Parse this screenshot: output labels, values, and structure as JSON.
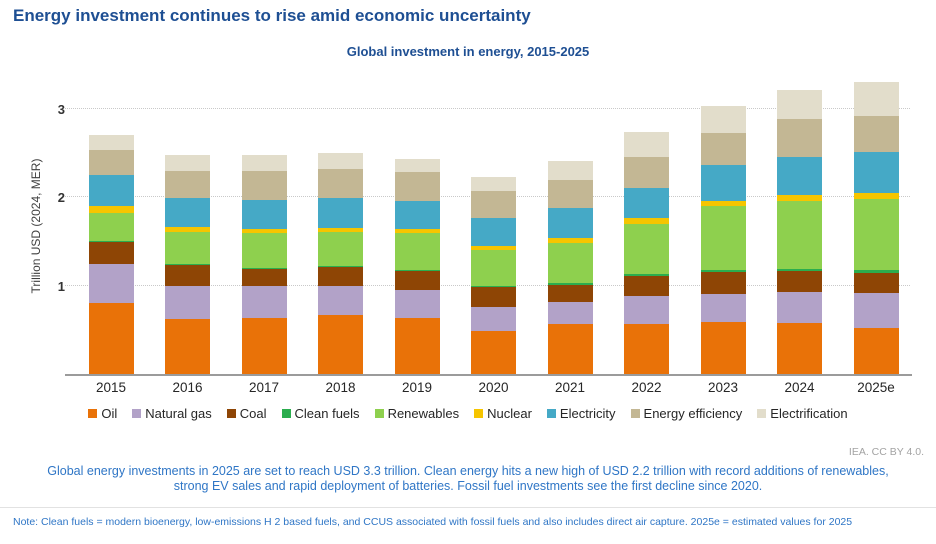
{
  "page": {
    "title": "Energy investment continues to rise amid economic uncertainty",
    "credit": "IEA. CC BY 4.0.",
    "caption": "Global energy investments in 2025 are set to reach USD 3.3 trillion. Clean energy hits a new high of USD 2.2 trillion with record additions of renewables, strong EV sales and rapid deployment of batteries. Fossil fuel investments see the first decline since 2020.",
    "note": "Note: Clean fuels = modern bioenergy, low-emissions H 2 based fuels, and CCUS associated with fossil fuels and also includes direct air capture. 2025e = estimated values for 2025"
  },
  "colors": {
    "title_blue": "#1e4f93",
    "caption_blue": "#2f76c6",
    "credit_gray": "#a3a3a3",
    "axis_gray": "#9b9b9b",
    "gridline_gray": "#c9c9c9"
  },
  "chart_data": {
    "type": "bar",
    "stacked": true,
    "title": "Global investment in energy, 2015-2025",
    "xlabel": "",
    "ylabel": "Trillion USD (2024, MER)",
    "ylim": [
      0,
      3.45
    ],
    "yticks": [
      1,
      2,
      3
    ],
    "grid": "horizontal-dotted",
    "legend_position": "bottom",
    "units": "trillion USD",
    "categories": [
      "2015",
      "2016",
      "2017",
      "2018",
      "2019",
      "2020",
      "2021",
      "2022",
      "2023",
      "2024",
      "2025e"
    ],
    "series": [
      {
        "name": "Oil",
        "color": "#e97208",
        "values": [
          0.8,
          0.62,
          0.63,
          0.67,
          0.63,
          0.49,
          0.56,
          0.57,
          0.59,
          0.58,
          0.52
        ]
      },
      {
        "name": "Natural gas",
        "color": "#b2a2c8",
        "values": [
          0.44,
          0.38,
          0.37,
          0.33,
          0.32,
          0.27,
          0.25,
          0.31,
          0.31,
          0.35,
          0.4
        ]
      },
      {
        "name": "Coal",
        "color": "#8e4505",
        "values": [
          0.25,
          0.23,
          0.19,
          0.21,
          0.21,
          0.22,
          0.2,
          0.23,
          0.25,
          0.23,
          0.22
        ]
      },
      {
        "name": "Clean fuels",
        "color": "#2bad4e",
        "values": [
          0.01,
          0.01,
          0.01,
          0.01,
          0.01,
          0.01,
          0.015,
          0.02,
          0.025,
          0.03,
          0.04
        ]
      },
      {
        "name": "Renewables",
        "color": "#8ed04e",
        "values": [
          0.32,
          0.36,
          0.39,
          0.38,
          0.42,
          0.41,
          0.46,
          0.57,
          0.72,
          0.77,
          0.8
        ]
      },
      {
        "name": "Nuclear",
        "color": "#f6c500",
        "values": [
          0.08,
          0.06,
          0.05,
          0.05,
          0.05,
          0.05,
          0.05,
          0.06,
          0.06,
          0.06,
          0.07
        ]
      },
      {
        "name": "Electricity",
        "color": "#45a9c6",
        "values": [
          0.35,
          0.33,
          0.33,
          0.34,
          0.31,
          0.31,
          0.34,
          0.34,
          0.41,
          0.43,
          0.46
        ]
      },
      {
        "name": "Energy efficiency",
        "color": "#c3b794",
        "values": [
          0.28,
          0.31,
          0.32,
          0.33,
          0.33,
          0.31,
          0.32,
          0.35,
          0.36,
          0.43,
          0.41
        ]
      },
      {
        "name": "Electrification",
        "color": "#e2ddcb",
        "values": [
          0.17,
          0.18,
          0.19,
          0.18,
          0.15,
          0.16,
          0.21,
          0.28,
          0.3,
          0.33,
          0.38
        ]
      }
    ],
    "totals": [
      2.7,
      2.48,
      2.48,
      2.5,
      2.43,
      2.23,
      2.41,
      2.73,
      3.03,
      3.21,
      3.3
    ]
  }
}
